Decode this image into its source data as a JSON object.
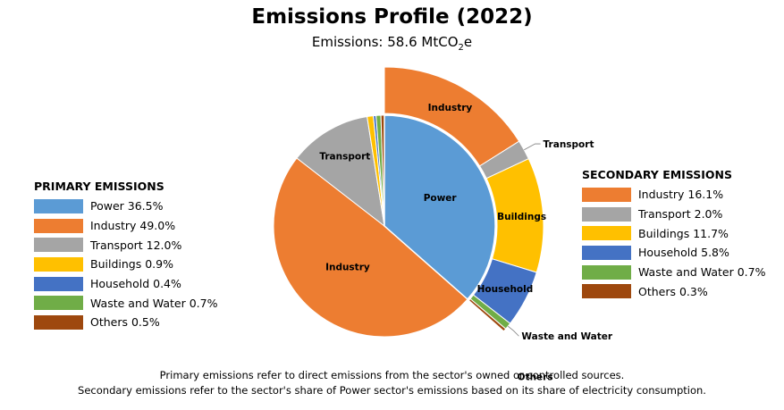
{
  "chart_data": {
    "type": "pie",
    "title": "Emissions Profile (2022)",
    "subtitle": "Emissions: 58.6 MtCO",
    "subtitle_sub": "2",
    "subtitle_tail": "e",
    "primary": {
      "legend_title": "PRIMARY EMISSIONS",
      "slices": [
        {
          "name": "Power",
          "value": 36.5,
          "legend": "Power 36.5%",
          "color": "#5B9BD5"
        },
        {
          "name": "Industry",
          "value": 49.0,
          "legend": "Industry 49.0%",
          "color": "#ED7D31"
        },
        {
          "name": "Transport",
          "value": 12.0,
          "legend": "Transport 12.0%",
          "color": "#A5A5A5"
        },
        {
          "name": "Buildings",
          "value": 0.9,
          "legend": "Buildings 0.9%",
          "color": "#FFC000"
        },
        {
          "name": "Household",
          "value": 0.4,
          "legend": "Household 0.4%",
          "color": "#4472C4"
        },
        {
          "name": "Waste and Water",
          "value": 0.7,
          "legend": "Waste and Water 0.7%",
          "color": "#70AD47"
        },
        {
          "name": "Others",
          "value": 0.5,
          "legend": "Others 0.5%",
          "color": "#9E480E"
        }
      ]
    },
    "secondary": {
      "legend_title": "SECONDARY EMISSIONS",
      "slices": [
        {
          "name": "Industry",
          "value": 16.1,
          "legend": "Industry 16.1%",
          "color": "#ED7D31"
        },
        {
          "name": "Transport",
          "value": 2.0,
          "legend": "Transport 2.0%",
          "color": "#A5A5A5"
        },
        {
          "name": "Buildings",
          "value": 11.7,
          "legend": "Buildings 11.7%",
          "color": "#FFC000"
        },
        {
          "name": "Household",
          "value": 5.8,
          "legend": "Household 5.8%",
          "color": "#4472C4"
        },
        {
          "name": "Waste and Water",
          "value": 0.7,
          "legend": "Waste and Water 0.7%",
          "color": "#70AD47"
        },
        {
          "name": "Others",
          "value": 0.3,
          "legend": "Others 0.3%",
          "color": "#9E480E"
        }
      ]
    },
    "footnotes": [
      "Primary emissions refer to direct emissions from the sector's owned or controlled sources.",
      "Secondary emissions refer to the sector's share of Power sector's emissions based on its share of electricity consumption."
    ]
  }
}
